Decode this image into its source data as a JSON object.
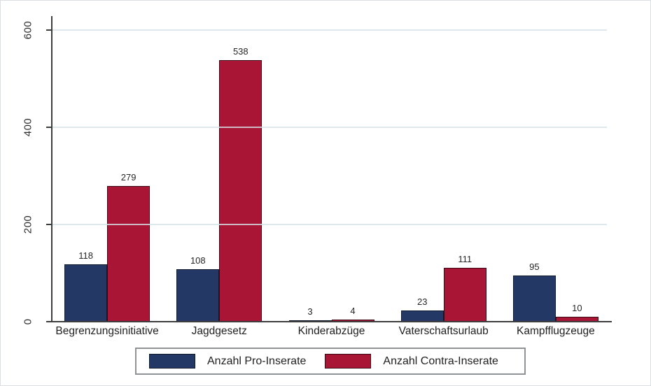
{
  "figure": {
    "background": "#ffffff",
    "frame_color": "#dcdfe1"
  },
  "chart_data": {
    "type": "bar",
    "categories": [
      "Begrenzungsinitiative",
      "Jagdgesetz",
      "Kinderabzüge",
      "Vaterschaftsurlaub",
      "Kampfflugzeuge"
    ],
    "series": [
      {
        "name": "Anzahl Pro-Inserate",
        "values": [
          118,
          108,
          3,
          23,
          95
        ],
        "color": "#233864",
        "border_color": "#101a2e"
      },
      {
        "name": "Anzahl Contra-Inserate",
        "values": [
          279,
          538,
          4,
          111,
          10
        ],
        "color": "#a81535",
        "border_color": "#3c0914"
      }
    ],
    "title": "",
    "xlabel": "",
    "ylabel": "",
    "ylim": [
      0,
      600
    ],
    "yticks": [
      0,
      200,
      400,
      600
    ],
    "ytick_labels": [
      "0",
      "200",
      "400",
      "600"
    ],
    "grid": "horizontal",
    "gridline_color": "#d6e2e9",
    "axis_color": "#3d3d3d",
    "value_labels_shown": true,
    "legend_position": "bottom-center"
  }
}
